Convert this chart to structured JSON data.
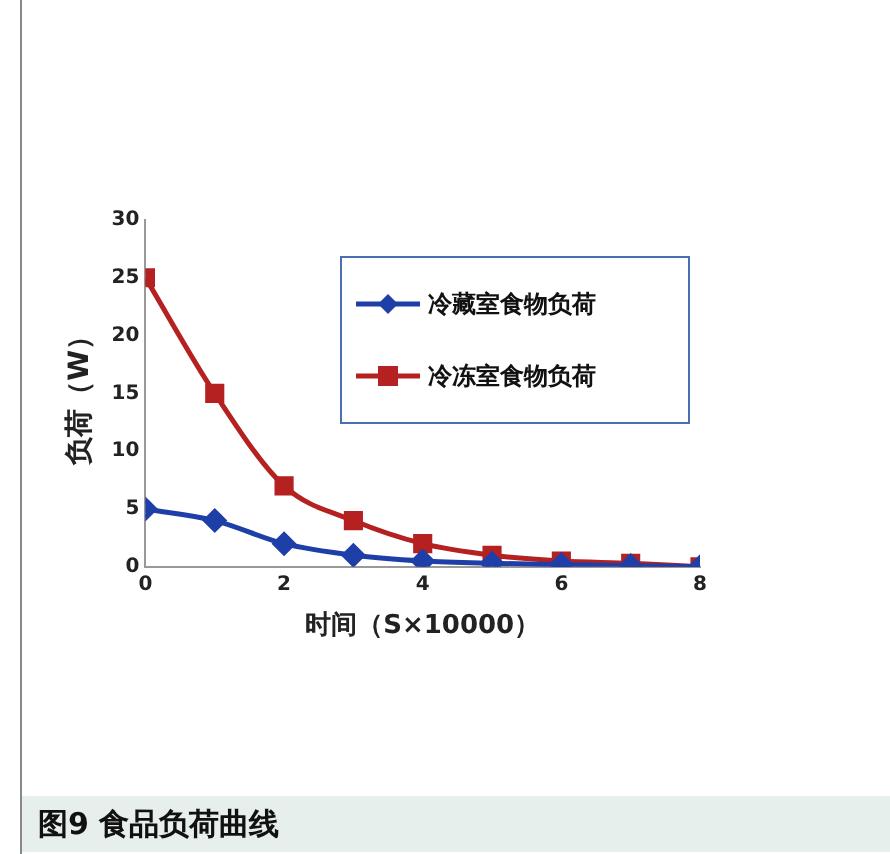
{
  "chart_data": {
    "type": "line",
    "xlabel": "时间（S×10000）",
    "ylabel": "负荷（W）",
    "annotations": [
      "图9 食品负荷曲线"
    ],
    "x": [
      0,
      1,
      2,
      3,
      4,
      5,
      6,
      7,
      8
    ],
    "series": [
      {
        "name": "冷藏室食物负荷",
        "color": "#1f3fa8",
        "marker": "diamond",
        "values": [
          5,
          4,
          2,
          1,
          0.5,
          0.3,
          0.2,
          0.1,
          0
        ]
      },
      {
        "name": "冷冻室食物负荷",
        "color": "#b52020",
        "marker": "square",
        "values": [
          25,
          15,
          7,
          4,
          2,
          1,
          0.5,
          0.3,
          0
        ]
      }
    ],
    "xlim": [
      0,
      8
    ],
    "xticks": [
      0,
      2,
      4,
      6,
      8
    ],
    "ylim": [
      0,
      30
    ],
    "yticks": [
      0,
      5,
      10,
      15,
      20,
      25,
      30
    ],
    "grid": false,
    "legend": "top right"
  }
}
